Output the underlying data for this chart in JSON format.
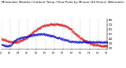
{
  "title": "Milwaukee Weather Outdoor Temp / Dew Point by Minute (24 Hours) (Alternate)",
  "title_fontsize": 2.8,
  "background_color": "#ffffff",
  "grid_color": "#999999",
  "temp_color": "#dd0000",
  "dew_color": "#0000cc",
  "ylim": [
    18,
    82
  ],
  "ytick_values": [
    20,
    30,
    40,
    50,
    60,
    70,
    80
  ],
  "ytick_labels": [
    "20",
    "30",
    "40",
    "50",
    "60",
    "70",
    "80"
  ],
  "ylabel_fontsize": 2.8,
  "xlabel_fontsize": 2.2,
  "marker_size": 0.5,
  "n_points": 1440,
  "temp_data": [
    40,
    40,
    40,
    39,
    39,
    39,
    38,
    38,
    38,
    37,
    37,
    37,
    37,
    36,
    36,
    36,
    36,
    35,
    35,
    35,
    35,
    35,
    34,
    34,
    34,
    34,
    34,
    34,
    33,
    33,
    33,
    33,
    33,
    33,
    33,
    33,
    33,
    33,
    33,
    33,
    33,
    33,
    33,
    33,
    33,
    33,
    33,
    33,
    34,
    34,
    34,
    34,
    35,
    35,
    36,
    36,
    37,
    37,
    37,
    38,
    38,
    38,
    38,
    39,
    39,
    39,
    40,
    40,
    41,
    41,
    42,
    42,
    43,
    43,
    44,
    44,
    45,
    46,
    46,
    47,
    48,
    48,
    49,
    50,
    50,
    51,
    52,
    52,
    53,
    54,
    54,
    55,
    55,
    56,
    57,
    57,
    58,
    58,
    59,
    59,
    60,
    60,
    61,
    61,
    62,
    62,
    63,
    63,
    63,
    64,
    64,
    65,
    65,
    65,
    66,
    66,
    66,
    67,
    67,
    67,
    68,
    68,
    68,
    68,
    69,
    69,
    69,
    69,
    69,
    70,
    70,
    70,
    70,
    70,
    70,
    70,
    70,
    71,
    71,
    71,
    71,
    71,
    71,
    71,
    71,
    71,
    71,
    71,
    71,
    71,
    71,
    71,
    71,
    71,
    71,
    71,
    71,
    71,
    71,
    71,
    71,
    71,
    71,
    71,
    71,
    70,
    70,
    70,
    70,
    70,
    70,
    70,
    70,
    69,
    69,
    69,
    69,
    68,
    68,
    68,
    68,
    67,
    67,
    67,
    66,
    66,
    65,
    65,
    64,
    64,
    63,
    63,
    62,
    62,
    61,
    61,
    60,
    59,
    59,
    58,
    57,
    57,
    56,
    55,
    55,
    54,
    53,
    52,
    52,
    51,
    50,
    50,
    49,
    48,
    48,
    47,
    46,
    46,
    45,
    44,
    44,
    43,
    43,
    42,
    42,
    41,
    41,
    40,
    40,
    39,
    39,
    38,
    38,
    37,
    37,
    37,
    36,
    36,
    35,
    35,
    34,
    34,
    34,
    33,
    33,
    32,
    32,
    32,
    31,
    31,
    30,
    30,
    30,
    29,
    29,
    29,
    28,
    28,
    28,
    27,
    27,
    27,
    27,
    27,
    26,
    26,
    26,
    26,
    26,
    26,
    26,
    26,
    26,
    26,
    26,
    25,
    25,
    25,
    25,
    25,
    25,
    25,
    25,
    25,
    25,
    25,
    25,
    25,
    25,
    25,
    25,
    25,
    25,
    25,
    25,
    25,
    25,
    25,
    25,
    25
  ],
  "dew_data": [
    28,
    28,
    27,
    27,
    27,
    27,
    26,
    26,
    26,
    26,
    26,
    25,
    25,
    25,
    25,
    25,
    25,
    25,
    25,
    25,
    25,
    25,
    25,
    25,
    25,
    25,
    25,
    26,
    27,
    28,
    29,
    30,
    31,
    32,
    33,
    34,
    35,
    35,
    36,
    36,
    37,
    37,
    38,
    38,
    39,
    39,
    40,
    40,
    40,
    41,
    41,
    41,
    41,
    42,
    42,
    42,
    42,
    42,
    43,
    43,
    43,
    43,
    43,
    43,
    44,
    44,
    44,
    44,
    44,
    44,
    45,
    45,
    45,
    45,
    45,
    45,
    46,
    46,
    46,
    46,
    46,
    46,
    47,
    47,
    47,
    47,
    47,
    47,
    48,
    48,
    48,
    48,
    48,
    48,
    48,
    49,
    49,
    49,
    49,
    49,
    49,
    49,
    49,
    50,
    50,
    50,
    50,
    50,
    50,
    50,
    50,
    50,
    50,
    50,
    50,
    50,
    50,
    50,
    50,
    50,
    50,
    50,
    50,
    50,
    49,
    49,
    49,
    49,
    49,
    49,
    49,
    48,
    48,
    48,
    48,
    48,
    47,
    47,
    47,
    47,
    47,
    46,
    46,
    46,
    46,
    46,
    45,
    45,
    45,
    45,
    45,
    44,
    44,
    44,
    44,
    43,
    43,
    43,
    43,
    42,
    42,
    42,
    42,
    42,
    41,
    41,
    41,
    41,
    40,
    40,
    40,
    40,
    39,
    39,
    39,
    39,
    38,
    38,
    38,
    38,
    37,
    37,
    37,
    37,
    37,
    36,
    36,
    36,
    36,
    36,
    35,
    35,
    35,
    35,
    35,
    34,
    34,
    34,
    34,
    34,
    34,
    34,
    34,
    33,
    33,
    33,
    33,
    33,
    33,
    33,
    33,
    33,
    33,
    33,
    33,
    33,
    33,
    33,
    33,
    33,
    33,
    33,
    33,
    33,
    33,
    33,
    33,
    33,
    33,
    33,
    33,
    33,
    33,
    33,
    33,
    33,
    33,
    33,
    33,
    33,
    33,
    33,
    33,
    33,
    33,
    33,
    33,
    33,
    33,
    33,
    33,
    33,
    33,
    33,
    33,
    33,
    33,
    33,
    33,
    33,
    33,
    33,
    33,
    33,
    33,
    33,
    33,
    33,
    33,
    33,
    33,
    33,
    33,
    33,
    33,
    33,
    33,
    33,
    33,
    33,
    33,
    33,
    33,
    33,
    33,
    33,
    33,
    33,
    33,
    33,
    33,
    33,
    33,
    33,
    33,
    33,
    33,
    33,
    33,
    33
  ],
  "vline_count": 12,
  "x_tick_labels": [
    "00",
    "01",
    "02",
    "03",
    "04",
    "05",
    "06",
    "07",
    "08",
    "09",
    "10",
    "11",
    "12",
    "13",
    "14",
    "15",
    "16",
    "17",
    "18",
    "19",
    "20",
    "21",
    "22",
    "23",
    "24"
  ]
}
